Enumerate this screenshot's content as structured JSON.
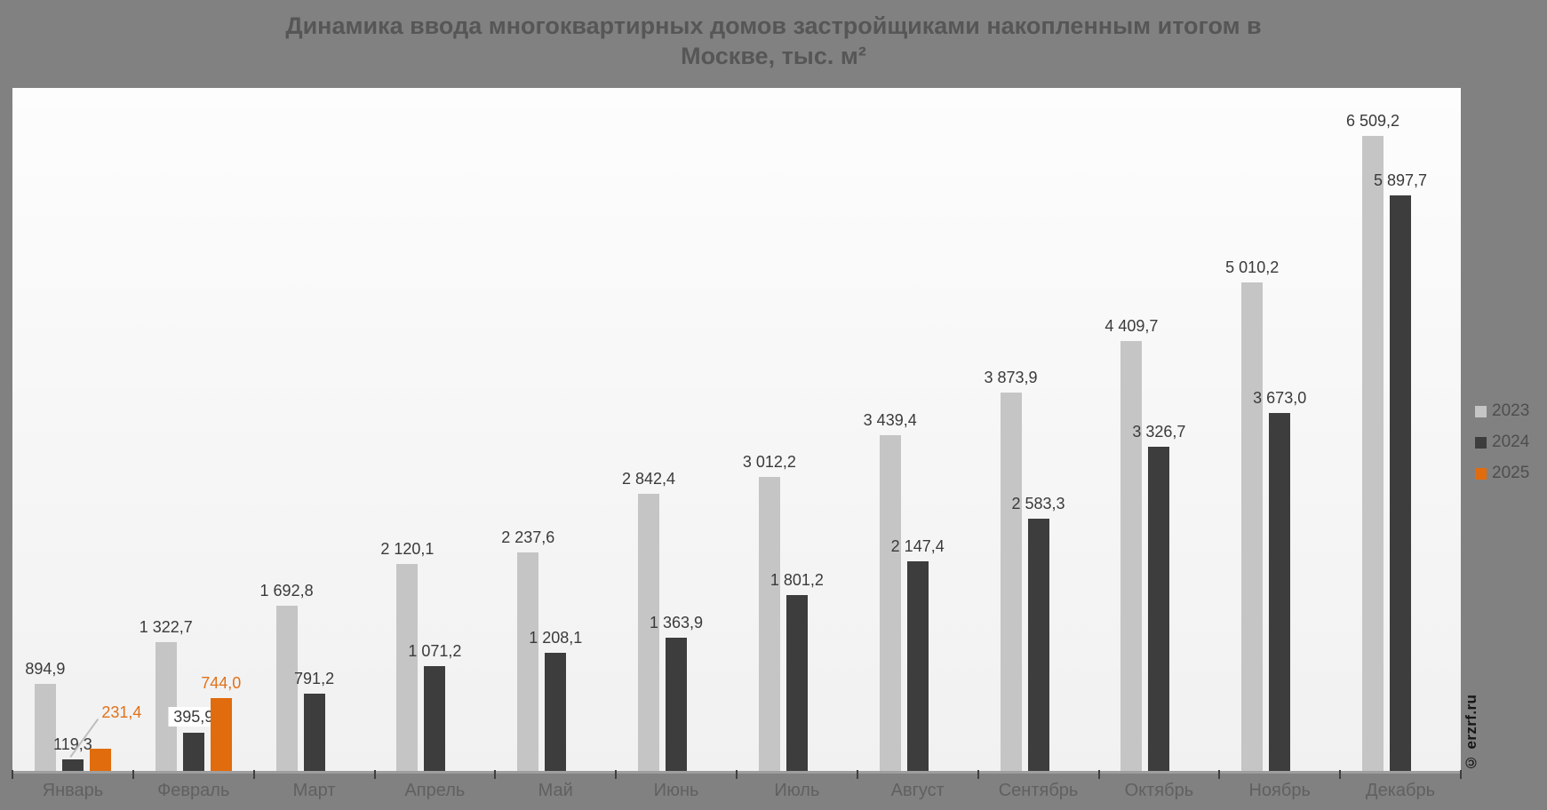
{
  "title": {
    "line1": "Динамика ввода многоквартирных домов застройщиками накопленным итогом в",
    "line2": "Москве, тыс. м²"
  },
  "watermark": "© erzrf.ru",
  "legend": [
    {
      "label": "2023",
      "color": "#c5c5c5"
    },
    {
      "label": "2024",
      "color": "#3d3d3d"
    },
    {
      "label": "2025",
      "color": "#e16c0e"
    }
  ],
  "chart_data": {
    "type": "bar",
    "title": "Динамика ввода многоквартирных домов застройщиками накопленным итогом в Москве, тыс. м²",
    "unit": "тыс. м²",
    "categories": [
      "Январь",
      "Февраль",
      "Март",
      "Апрель",
      "Май",
      "Июнь",
      "Июль",
      "Август",
      "Сентябрь",
      "Октябрь",
      "Ноябрь",
      "Декабрь"
    ],
    "series": [
      {
        "name": "2023",
        "color": "#c5c5c5",
        "values": [
          894.9,
          1322.7,
          1692.8,
          2120.1,
          2237.6,
          2842.4,
          3012.2,
          3439.4,
          3873.9,
          4409.7,
          5010.2,
          6509.2
        ],
        "labels": [
          "894,9",
          "1 322,7",
          "1 692,8",
          "2 120,1",
          "2 237,6",
          "2 842,4",
          "3 012,2",
          "3 439,4",
          "3 873,9",
          "4 409,7",
          "5 010,2",
          "6 509,2"
        ]
      },
      {
        "name": "2024",
        "color": "#3d3d3d",
        "values": [
          119.3,
          395.9,
          791.2,
          1071.2,
          1208.1,
          1363.9,
          1801.2,
          2147.4,
          2583.3,
          3326.7,
          3673.0,
          5897.7
        ],
        "labels": [
          "119,3",
          "395,9",
          "791,2",
          "1 071,2",
          "1 208,1",
          "1 363,9",
          "1 801,2",
          "2 147,4",
          "2 583,3",
          "3 326,7",
          "3 673,0",
          "5 897,7"
        ]
      },
      {
        "name": "2025",
        "color": "#e16c0e",
        "values": [
          231.4,
          744.0,
          null,
          null,
          null,
          null,
          null,
          null,
          null,
          null,
          null,
          null
        ],
        "labels": [
          "231,4",
          "744,0",
          null,
          null,
          null,
          null,
          null,
          null,
          null,
          null,
          null,
          null
        ]
      }
    ],
    "label_overrides": [
      {
        "series": "2025",
        "month_index": 0,
        "style": "offset-leader"
      },
      {
        "series": "2024",
        "month_index": 1,
        "style": "boxed"
      }
    ],
    "ylim": [
      0,
      6800
    ],
    "grid": false,
    "legend_position": "right",
    "data_labels": true
  }
}
